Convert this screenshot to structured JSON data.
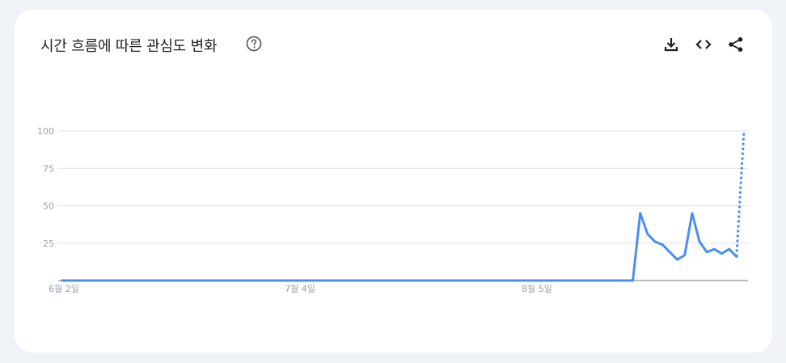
{
  "header": {
    "title": "시간 흐름에 따른 관심도 변화",
    "help_icon": "help-circle-icon",
    "actions": [
      {
        "name": "download",
        "icon": "download-icon"
      },
      {
        "name": "embed",
        "icon": "code-icon"
      },
      {
        "name": "share",
        "icon": "share-icon"
      }
    ]
  },
  "colors": {
    "line": "#4a8ff0",
    "grid": "#e0e0e0",
    "axis": "#757575",
    "tick_text": "#9aa0a6"
  },
  "chart_data": {
    "type": "line",
    "title": "",
    "xlabel": "",
    "ylabel": "",
    "ylim": [
      0,
      100
    ],
    "yticks": [
      "100",
      "75",
      "50",
      "25"
    ],
    "xticks": [
      "6월 2일",
      "7월 4일",
      "8월 5일"
    ],
    "grid": true,
    "series": [
      {
        "values": [
          0,
          0,
          0,
          0,
          0,
          0,
          0,
          0,
          0,
          0,
          0,
          0,
          0,
          0,
          0,
          0,
          0,
          0,
          0,
          0,
          0,
          0,
          0,
          0,
          0,
          0,
          0,
          0,
          0,
          0,
          0,
          0,
          0,
          0,
          0,
          0,
          0,
          0,
          0,
          0,
          0,
          0,
          0,
          0,
          0,
          0,
          0,
          0,
          0,
          0,
          0,
          0,
          0,
          0,
          0,
          0,
          0,
          0,
          0,
          0,
          0,
          0,
          0,
          0,
          0,
          0,
          0,
          0,
          0,
          0,
          0,
          0,
          0,
          0,
          0,
          0,
          0,
          0,
          45,
          31,
          26,
          24,
          19,
          14,
          17,
          45,
          26,
          19,
          21,
          18,
          21,
          16,
          100
        ],
        "partial_from_index": 91
      }
    ]
  }
}
